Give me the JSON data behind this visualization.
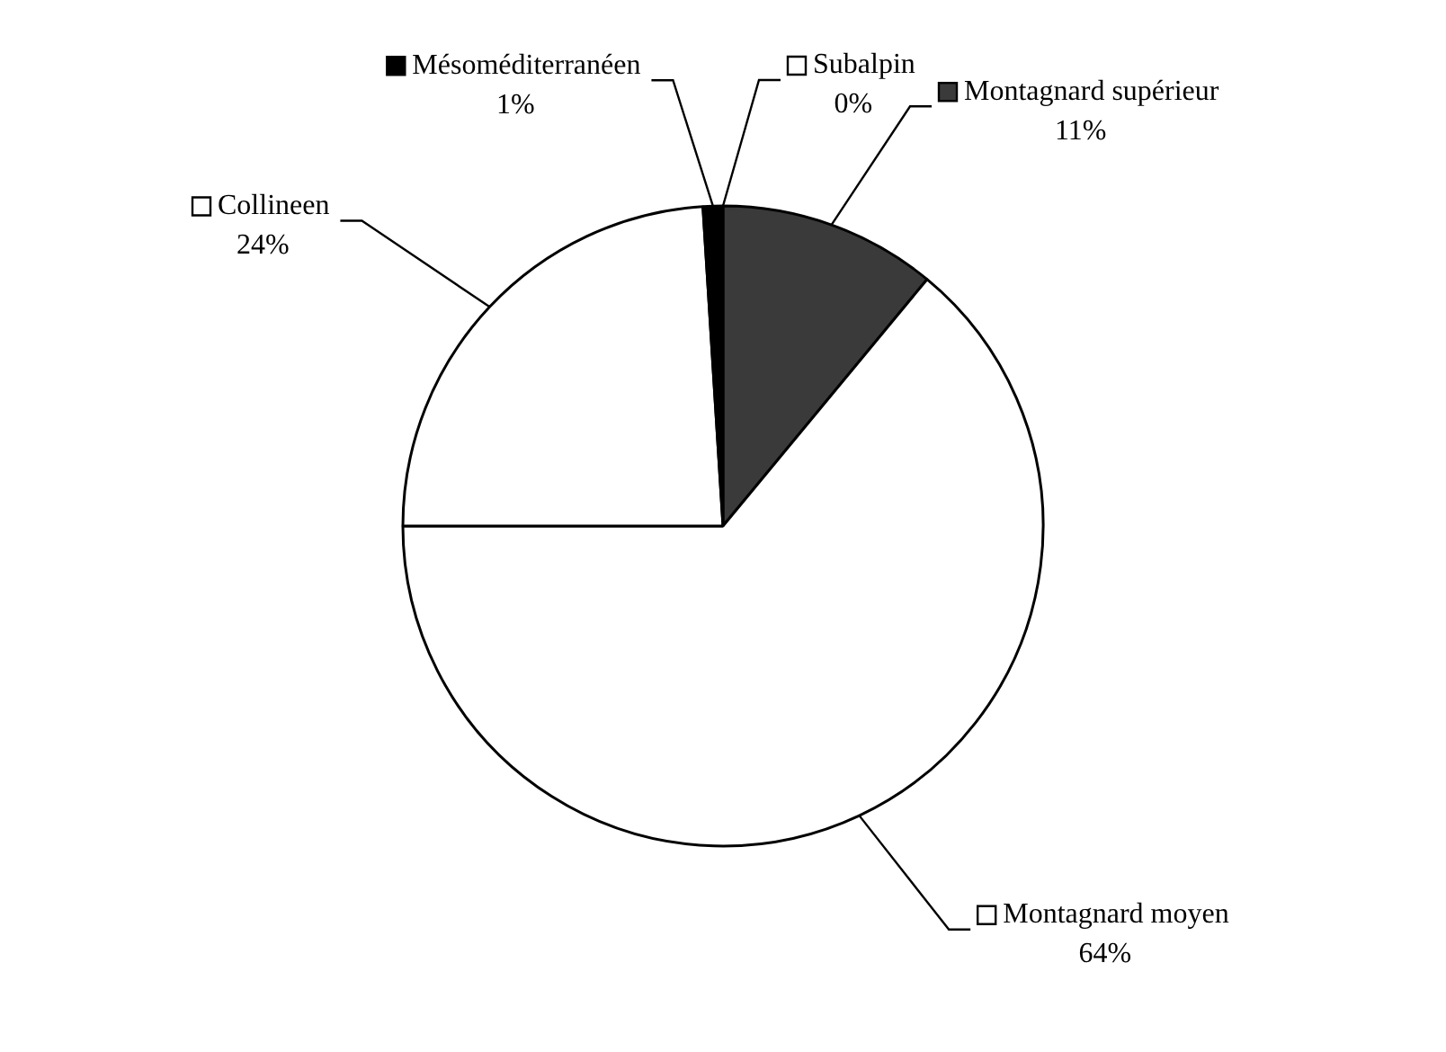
{
  "chart_data": {
    "type": "pie",
    "categories": [
      "Subalpin",
      "Montagnard supérieur",
      "Montagnard moyen",
      "Collineen",
      "Mésoméditerranéen"
    ],
    "values": [
      0,
      11,
      64,
      24,
      1
    ],
    "colors": [
      "#ffffff",
      "#3a3a3a",
      "#ffffff",
      "#ffffff",
      "#000000"
    ],
    "value_labels": [
      "0%",
      "11%",
      "64%",
      "24%",
      "1%"
    ],
    "legend": "right"
  }
}
